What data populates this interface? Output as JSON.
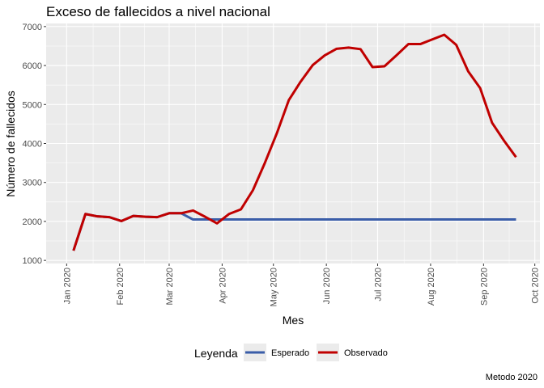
{
  "chart_data": {
    "type": "line",
    "title": "Exceso de fallecidos a nivel nacional",
    "xlabel": "Mes",
    "ylabel": "Número de fallecidos",
    "caption": "Metodo 2020",
    "x_tick_labels": [
      "Jan 2020",
      "Feb 2020",
      "Mar 2020",
      "Apr 2020",
      "May 2020",
      "Jun 2020",
      "Jul 2020",
      "Aug 2020",
      "Sep 2020",
      "Oct 2020"
    ],
    "x_tick_dates": [
      "2020-01-01",
      "2020-02-01",
      "2020-03-01",
      "2020-04-01",
      "2020-05-01",
      "2020-06-01",
      "2020-07-01",
      "2020-08-01",
      "2020-09-01",
      "2020-10-01"
    ],
    "xlim": [
      "2019-12-20",
      "2020-10-04"
    ],
    "ylim": [
      920,
      7080
    ],
    "y_ticks": [
      1000,
      2000,
      3000,
      4000,
      5000,
      6000,
      7000
    ],
    "grid": true,
    "legend": {
      "title": "Leyenda",
      "position": "bottom"
    },
    "colors": {
      "Esperado": "#3a5da8",
      "Observado": "#c00000",
      "panel": "#ebebeb"
    },
    "series": [
      {
        "name": "Esperado",
        "x": [
          "2020-01-05",
          "2020-01-12",
          "2020-01-19",
          "2020-01-26",
          "2020-02-02",
          "2020-02-09",
          "2020-02-16",
          "2020-02-23",
          "2020-03-01",
          "2020-03-08",
          "2020-03-15",
          "2020-03-22",
          "2020-03-29",
          "2020-04-05",
          "2020-04-12",
          "2020-04-19",
          "2020-04-26",
          "2020-05-03",
          "2020-05-10",
          "2020-05-17",
          "2020-05-24",
          "2020-05-31",
          "2020-06-07",
          "2020-06-14",
          "2020-06-21",
          "2020-06-28",
          "2020-07-05",
          "2020-07-12",
          "2020-07-19",
          "2020-07-26",
          "2020-08-02",
          "2020-08-09",
          "2020-08-16",
          "2020-08-23",
          "2020-08-30",
          "2020-09-06",
          "2020-09-13",
          "2020-09-20"
        ],
        "values": [
          1250,
          2190,
          2130,
          2110,
          2010,
          2140,
          2120,
          2110,
          2210,
          2210,
          2050,
          2050,
          2050,
          2050,
          2050,
          2050,
          2050,
          2050,
          2050,
          2050,
          2050,
          2050,
          2050,
          2050,
          2050,
          2050,
          2050,
          2050,
          2050,
          2050,
          2050,
          2050,
          2050,
          2050,
          2050,
          2050,
          2050,
          2050
        ]
      },
      {
        "name": "Observado",
        "x": [
          "2020-01-05",
          "2020-01-12",
          "2020-01-19",
          "2020-01-26",
          "2020-02-02",
          "2020-02-09",
          "2020-02-16",
          "2020-02-23",
          "2020-03-01",
          "2020-03-08",
          "2020-03-15",
          "2020-03-22",
          "2020-03-29",
          "2020-04-05",
          "2020-04-12",
          "2020-04-19",
          "2020-04-26",
          "2020-05-03",
          "2020-05-10",
          "2020-05-17",
          "2020-05-24",
          "2020-05-31",
          "2020-06-07",
          "2020-06-14",
          "2020-06-21",
          "2020-06-28",
          "2020-07-05",
          "2020-07-12",
          "2020-07-19",
          "2020-07-26",
          "2020-08-02",
          "2020-08-09",
          "2020-08-16",
          "2020-08-23",
          "2020-08-30",
          "2020-09-06",
          "2020-09-13",
          "2020-09-20"
        ],
        "values": [
          1250,
          2190,
          2130,
          2110,
          2010,
          2140,
          2120,
          2110,
          2210,
          2210,
          2280,
          2120,
          1950,
          2190,
          2310,
          2800,
          3500,
          4260,
          5110,
          5590,
          6010,
          6260,
          6430,
          6460,
          6420,
          5960,
          5980,
          6260,
          6550,
          6550,
          6670,
          6790,
          6530,
          5850,
          5420,
          4530,
          4070,
          3650
        ]
      }
    ]
  }
}
